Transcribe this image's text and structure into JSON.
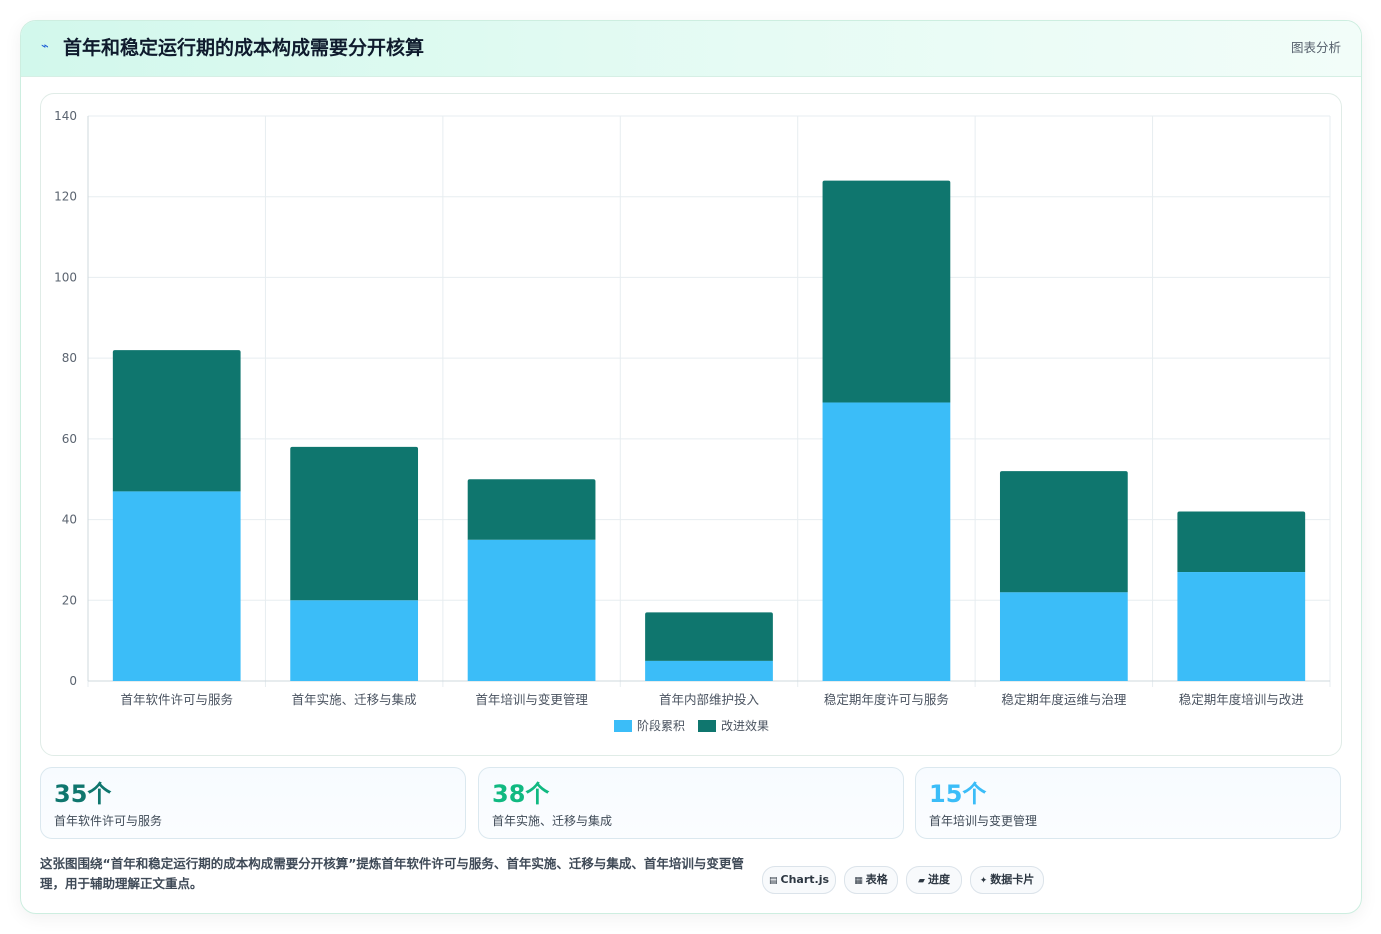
{
  "header": {
    "title": "首年和稳定运行期的成本构成需要分开核算",
    "kind": "图表分析"
  },
  "chart_data": {
    "type": "bar",
    "stacked": true,
    "categories": [
      "首年软件许可与服务",
      "首年实施、迁移与集成",
      "首年培训与变更管理",
      "首年内部维护投入",
      "稳定期年度许可与服务",
      "稳定期年度运维与治理",
      "稳定期年度培训与改进"
    ],
    "series": [
      {
        "name": "阶段累积",
        "color": "#3bbdf8",
        "values": [
          47,
          20,
          35,
          5,
          69,
          22,
          27
        ]
      },
      {
        "name": "改进效果",
        "color": "#0f766e",
        "values": [
          35,
          38,
          15,
          12,
          55,
          30,
          15
        ]
      }
    ],
    "ylim": [
      0,
      140
    ],
    "yticks": [
      0,
      20,
      40,
      60,
      80,
      100,
      120,
      140
    ],
    "grid": true,
    "legend_position": "bottom"
  },
  "stats": [
    {
      "value": "35个",
      "label": "首年软件许可与服务",
      "color": "#0f766e"
    },
    {
      "value": "38个",
      "label": "首年实施、迁移与集成",
      "color": "#10b981"
    },
    {
      "value": "15个",
      "label": "首年培训与变更管理",
      "color": "#3bbdf8"
    }
  ],
  "footer": {
    "description": "这张图围绕“首年和稳定运行期的成本构成需要分开核算”提炼首年软件许可与服务、首年实施、迁移与集成、首年培训与变更管理，用于辅助理解正文重点。",
    "tags": [
      {
        "icon": "▤",
        "label": "Chart.js"
      },
      {
        "icon": "▦",
        "label": "表格"
      },
      {
        "icon": "▰",
        "label": "进度"
      },
      {
        "icon": "✦",
        "label": "数据卡片"
      }
    ]
  }
}
